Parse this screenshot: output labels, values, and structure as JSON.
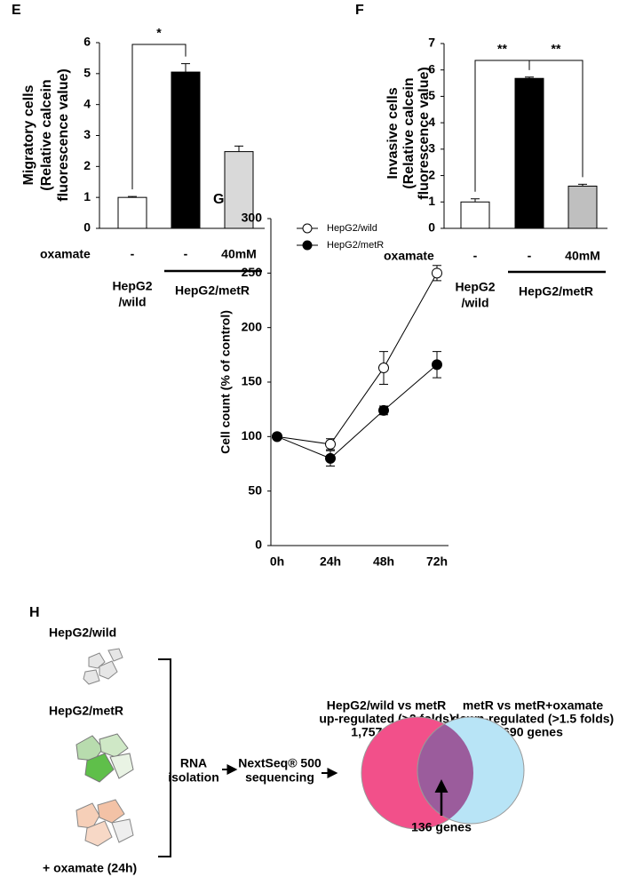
{
  "chart_data": [
    {
      "type": "bar",
      "panel": "E",
      "ylabel": [
        "Migratory cells",
        "(Relative calcein",
        "fluorescence value)"
      ],
      "row_label": "oxamate",
      "categories": [
        "-",
        "-",
        "40mM"
      ],
      "groups": [
        {
          "label": [
            "HepG2",
            "/wild"
          ]
        },
        {
          "label": [
            "HepG2/metR"
          ]
        }
      ],
      "values": [
        1.0,
        5.05,
        2.48
      ],
      "errors": [
        0.03,
        0.27,
        0.18
      ],
      "colors": [
        "#ffffff",
        "#000000",
        "#d9d9d9"
      ],
      "significance": [
        "*"
      ],
      "ylim": [
        0,
        6
      ],
      "yticks": [
        0,
        1,
        2,
        3,
        4,
        5,
        6
      ]
    },
    {
      "type": "bar",
      "panel": "F",
      "ylabel": [
        "Invasive cells",
        "(Relative calcein",
        "fluorescence value)"
      ],
      "row_label": "oxamate",
      "categories": [
        "-",
        "-",
        "40mM"
      ],
      "groups": [
        {
          "label": [
            "HepG2",
            "/wild"
          ]
        },
        {
          "label": [
            "HepG2/metR"
          ]
        }
      ],
      "values": [
        1.0,
        5.68,
        1.6
      ],
      "errors": [
        0.12,
        0.05,
        0.07
      ],
      "colors": [
        "#ffffff",
        "#000000",
        "#bfbfbf"
      ],
      "significance": [
        "**",
        "**"
      ],
      "ylim": [
        0,
        7
      ],
      "yticks": [
        0,
        1,
        2,
        3,
        4,
        5,
        6,
        7
      ]
    },
    {
      "type": "line",
      "panel": "G",
      "ylabel": "Cell count (% of control)",
      "categories": [
        "0h",
        "24h",
        "48h",
        "72h"
      ],
      "series": [
        {
          "name": "HepG2/wild",
          "color": "#ffffff",
          "values": [
            100,
            93,
            163,
            250
          ],
          "errors": [
            0,
            5,
            15,
            7
          ]
        },
        {
          "name": "HepG2/metR",
          "color": "#000000",
          "values": [
            100,
            80,
            124,
            166
          ],
          "errors": [
            0,
            7,
            4,
            12
          ]
        }
      ],
      "legend": "upper left",
      "ylim": [
        0,
        300
      ],
      "yticks": [
        0,
        50,
        100,
        150,
        200,
        250,
        300
      ]
    }
  ],
  "diagram": {
    "panel": "H",
    "samples": [
      "HepG2/wild",
      "HepG2/metR",
      "+ oxamate (24h)"
    ],
    "steps": [
      [
        "RNA",
        "isolation"
      ],
      [
        "NextSeq® 500",
        "sequencing"
      ]
    ],
    "venn": {
      "left": [
        "HepG2/wild vs metR",
        "up-regulated (>2 folds)",
        "1,757 genes"
      ],
      "right": [
        "metR vs metR+oxamate",
        "down-regulated (>1.5 folds)",
        "690 genes"
      ],
      "overlap": "136 genes"
    }
  }
}
